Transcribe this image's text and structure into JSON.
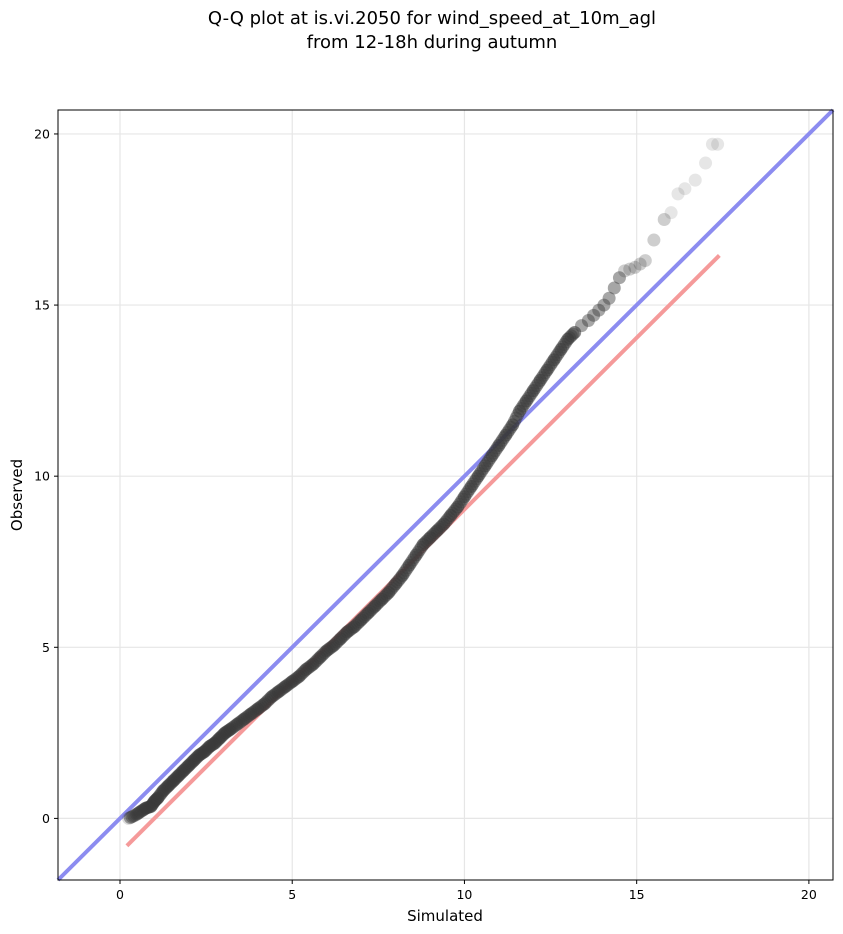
{
  "chart_data": {
    "type": "scatter",
    "title_line1": "Q-Q plot at is.vi.2050 for wind_speed_at_10m_agl",
    "title_line2": "from 12-18h during autumn",
    "xlabel": "Simulated",
    "ylabel": "Observed",
    "xlim": [
      -1.8,
      20.7
    ],
    "ylim": [
      -1.8,
      20.7
    ],
    "xticks": [
      "0",
      "5",
      "10",
      "15",
      "20"
    ],
    "yticks": [
      "0",
      "5",
      "10",
      "15",
      "20"
    ],
    "grid": true,
    "identity_line": {
      "x": [
        -1.8,
        20.7
      ],
      "y": [
        -1.8,
        20.7
      ],
      "color": "#8c8cf0"
    },
    "fit_line": {
      "x": [
        0.2,
        17.4
      ],
      "y": [
        -0.8,
        16.45
      ],
      "color": "#f59a9a"
    },
    "points": {
      "color": "#3a3a3a",
      "x": [
        0.25,
        0.45,
        0.6,
        0.75,
        0.9,
        1.0,
        1.1,
        1.25,
        1.4,
        1.55,
        1.7,
        1.85,
        2.0,
        2.15,
        2.3,
        2.45,
        2.6,
        2.75,
        2.9,
        3.05,
        3.2,
        3.4,
        3.6,
        3.8,
        4.0,
        4.2,
        4.4,
        4.6,
        4.8,
        5.0,
        5.2,
        5.4,
        5.6,
        5.8,
        6.0,
        6.2,
        6.4,
        6.6,
        6.8,
        7.0,
        7.2,
        7.4,
        7.6,
        7.8,
        8.0,
        8.2,
        8.4,
        8.6,
        8.8,
        9.0,
        9.2,
        9.4,
        9.6,
        9.8,
        10.0,
        10.2,
        10.4,
        10.6,
        10.8,
        11.0,
        11.2,
        11.4,
        11.6,
        11.8,
        12.0,
        12.2,
        12.4,
        12.6,
        12.8,
        13.0,
        13.2,
        13.4,
        13.6,
        13.75,
        13.9,
        14.05,
        14.2,
        14.35,
        14.5,
        14.65,
        14.8,
        14.95,
        15.1,
        15.25,
        15.5,
        15.8,
        16.0,
        16.2,
        16.4,
        16.7,
        17.0,
        17.2,
        17.35
      ],
      "y": [
        0.0,
        0.1,
        0.2,
        0.3,
        0.35,
        0.5,
        0.6,
        0.8,
        0.95,
        1.1,
        1.25,
        1.4,
        1.55,
        1.7,
        1.85,
        1.95,
        2.1,
        2.2,
        2.35,
        2.5,
        2.6,
        2.75,
        2.9,
        3.05,
        3.2,
        3.35,
        3.55,
        3.7,
        3.85,
        4.0,
        4.15,
        4.35,
        4.5,
        4.7,
        4.9,
        5.05,
        5.25,
        5.45,
        5.6,
        5.8,
        6.0,
        6.2,
        6.4,
        6.6,
        6.85,
        7.1,
        7.4,
        7.7,
        8.0,
        8.2,
        8.4,
        8.6,
        8.85,
        9.1,
        9.4,
        9.7,
        10.0,
        10.3,
        10.6,
        10.9,
        11.2,
        11.5,
        11.9,
        12.2,
        12.5,
        12.8,
        13.1,
        13.4,
        13.7,
        14.0,
        14.2,
        14.4,
        14.55,
        14.7,
        14.85,
        15.0,
        15.2,
        15.5,
        15.8,
        16.0,
        16.05,
        16.1,
        16.2,
        16.3,
        16.9,
        17.5,
        17.7,
        18.25,
        18.4,
        18.65,
        19.15,
        19.7,
        19.7
      ]
    }
  }
}
